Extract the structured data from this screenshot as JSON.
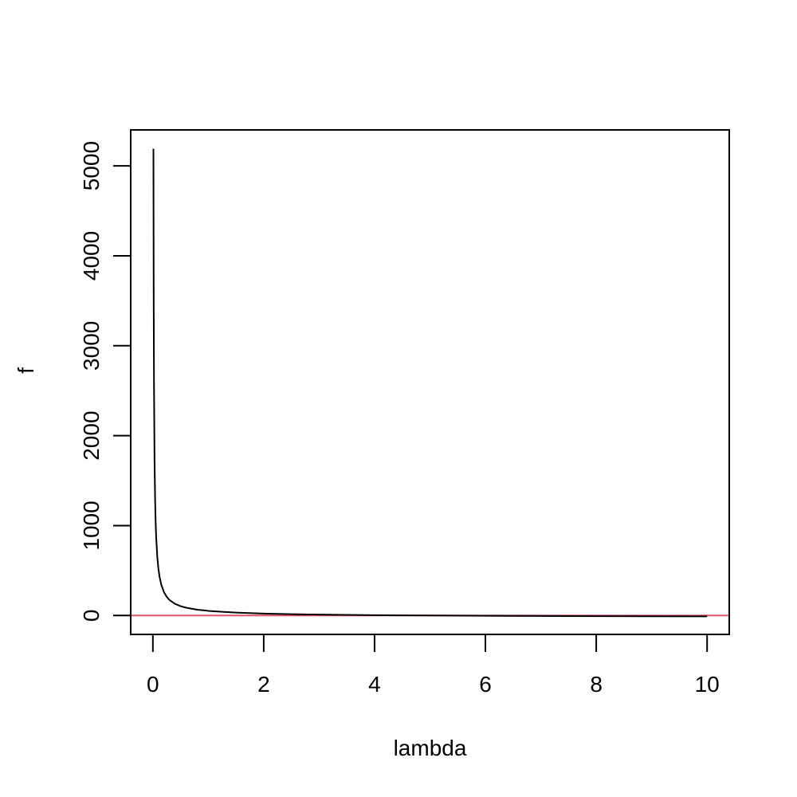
{
  "chart_data": {
    "type": "line",
    "title": "",
    "xlabel": "lambda",
    "ylabel": "f",
    "xlim": [
      -0.4,
      10.4
    ],
    "ylim": [
      -210,
      5400
    ],
    "x_ticks": [
      0,
      2,
      4,
      6,
      8,
      10
    ],
    "x_tick_labels": [
      "0",
      "2",
      "4",
      "6",
      "8",
      "10"
    ],
    "y_ticks": [
      0,
      1000,
      2000,
      3000,
      4000,
      5000
    ],
    "y_tick_labels": [
      "0",
      "1000",
      "2000",
      "3000",
      "4000",
      "5000"
    ],
    "grid": false,
    "legend": "none",
    "series": [
      {
        "color": "#000000",
        "x": [
          0.01,
          0.015,
          0.02,
          0.03,
          0.04,
          0.05,
          0.06,
          0.08,
          0.1,
          0.12,
          0.15,
          0.2,
          0.25,
          0.3,
          0.4,
          0.5,
          0.6,
          0.8,
          1.0,
          1.25,
          1.5,
          2.0,
          2.5,
          3.0,
          4.0,
          5.0,
          6.0,
          7.0,
          8.0,
          9.0,
          10.0
        ],
        "y": [
          5190,
          3460,
          2595,
          1730,
          1297,
          1038,
          865,
          649,
          519,
          433,
          346,
          260,
          208,
          173,
          130,
          104,
          87,
          65,
          52,
          41,
          33,
          22,
          15,
          10,
          4,
          0,
          -3,
          -5,
          -7,
          -8,
          -10
        ]
      }
    ],
    "hlines": [
      {
        "y": 0,
        "color": "#DF536B"
      }
    ]
  }
}
